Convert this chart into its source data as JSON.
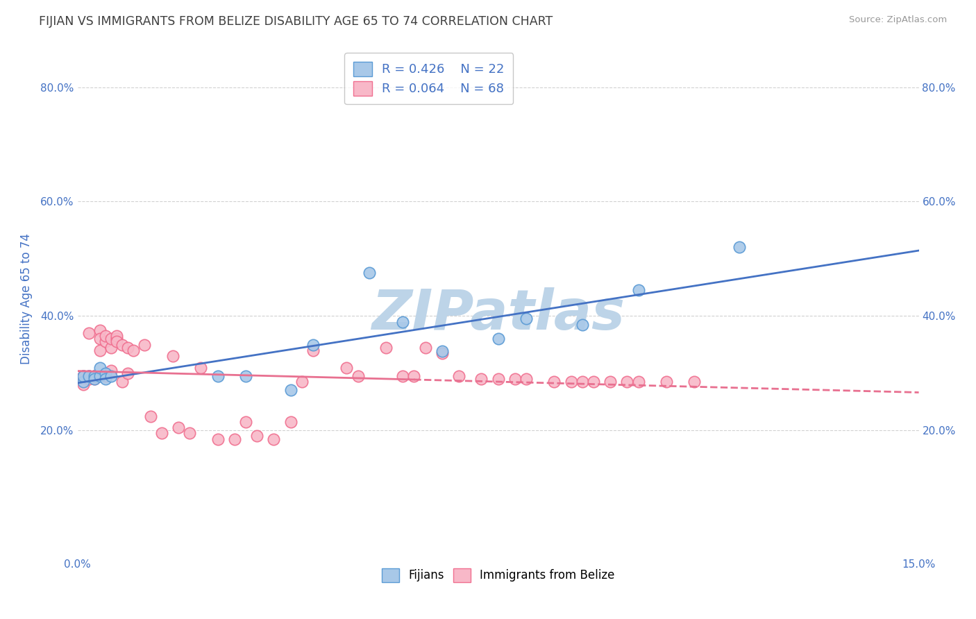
{
  "title": "FIJIAN VS IMMIGRANTS FROM BELIZE DISABILITY AGE 65 TO 74 CORRELATION CHART",
  "source": "Source: ZipAtlas.com",
  "ylabel": "Disability Age 65 to 74",
  "xlim": [
    0.0,
    0.15
  ],
  "ylim": [
    -0.02,
    0.88
  ],
  "watermark": "ZIPatlas",
  "legend_blue_R": "R = 0.426",
  "legend_blue_N": "N = 22",
  "legend_pink_R": "R = 0.064",
  "legend_pink_N": "N = 68",
  "fijian_x": [
    0.001,
    0.001,
    0.002,
    0.003,
    0.003,
    0.004,
    0.004,
    0.005,
    0.005,
    0.006,
    0.025,
    0.03,
    0.038,
    0.042,
    0.052,
    0.058,
    0.065,
    0.075,
    0.08,
    0.09,
    0.1,
    0.118
  ],
  "fijian_y": [
    0.285,
    0.295,
    0.295,
    0.295,
    0.29,
    0.295,
    0.31,
    0.3,
    0.29,
    0.295,
    0.295,
    0.295,
    0.27,
    0.35,
    0.475,
    0.39,
    0.338,
    0.36,
    0.395,
    0.385,
    0.445,
    0.52
  ],
  "belize_x": [
    0.001,
    0.001,
    0.001,
    0.001,
    0.001,
    0.002,
    0.002,
    0.002,
    0.002,
    0.002,
    0.003,
    0.003,
    0.003,
    0.003,
    0.003,
    0.004,
    0.004,
    0.004,
    0.005,
    0.005,
    0.005,
    0.006,
    0.006,
    0.006,
    0.007,
    0.007,
    0.007,
    0.008,
    0.008,
    0.009,
    0.009,
    0.01,
    0.012,
    0.013,
    0.015,
    0.017,
    0.018,
    0.02,
    0.022,
    0.025,
    0.028,
    0.03,
    0.032,
    0.035,
    0.038,
    0.04,
    0.042,
    0.048,
    0.05,
    0.055,
    0.058,
    0.06,
    0.062,
    0.065,
    0.068,
    0.072,
    0.075,
    0.078,
    0.08,
    0.085,
    0.088,
    0.09,
    0.092,
    0.095,
    0.098,
    0.1,
    0.105,
    0.11
  ],
  "belize_y": [
    0.29,
    0.295,
    0.28,
    0.295,
    0.295,
    0.295,
    0.295,
    0.295,
    0.29,
    0.37,
    0.295,
    0.295,
    0.295,
    0.29,
    0.295,
    0.34,
    0.375,
    0.36,
    0.295,
    0.355,
    0.365,
    0.305,
    0.345,
    0.36,
    0.36,
    0.365,
    0.355,
    0.285,
    0.35,
    0.3,
    0.345,
    0.34,
    0.35,
    0.225,
    0.195,
    0.33,
    0.205,
    0.195,
    0.31,
    0.185,
    0.185,
    0.215,
    0.19,
    0.185,
    0.215,
    0.285,
    0.34,
    0.31,
    0.295,
    0.345,
    0.295,
    0.295,
    0.345,
    0.335,
    0.295,
    0.29,
    0.29,
    0.29,
    0.29,
    0.285,
    0.285,
    0.285,
    0.285,
    0.285,
    0.285,
    0.285,
    0.285,
    0.285
  ],
  "blue_color": "#A8C8E8",
  "pink_color": "#F8B8C8",
  "blue_edge_color": "#5B9BD5",
  "pink_edge_color": "#F07090",
  "blue_line_color": "#4472C4",
  "pink_line_color": "#E87090",
  "background_color": "#FFFFFF",
  "grid_color": "#CCCCCC",
  "title_color": "#404040",
  "axis_label_color": "#4472C4",
  "source_color": "#999999",
  "watermark_color": "#BDD4E8"
}
